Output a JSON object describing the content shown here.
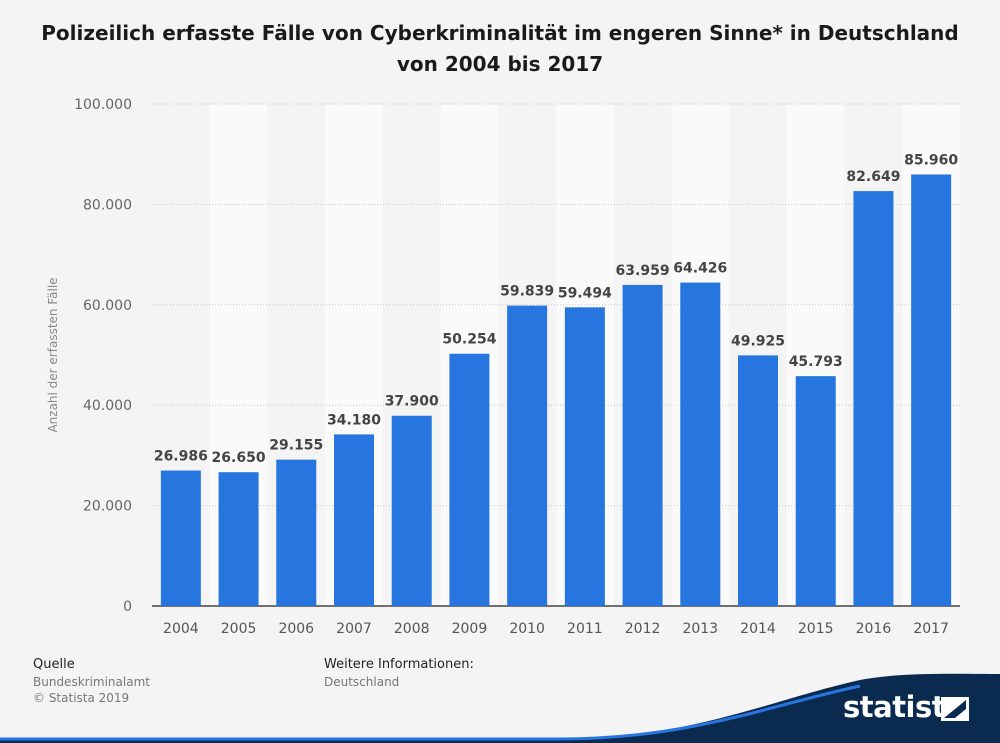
{
  "title_line1": "Polizeilich erfasste Fälle von Cyberkriminalität im engeren Sinne* in Deutschland",
  "title_line2": "von 2004 bis 2017",
  "chart_data": {
    "type": "bar",
    "categories": [
      "2004",
      "2005",
      "2006",
      "2007",
      "2008",
      "2009",
      "2010",
      "2011",
      "2012",
      "2013",
      "2014",
      "2015",
      "2016",
      "2017"
    ],
    "values": [
      26986,
      26650,
      29155,
      34180,
      37900,
      50254,
      59839,
      59494,
      63959,
      64426,
      49925,
      45793,
      82649,
      85960
    ],
    "value_labels": [
      "26.986",
      "26.650",
      "29.155",
      "34.180",
      "37.900",
      "50.254",
      "59.839",
      "59.494",
      "63.959",
      "64.426",
      "49.925",
      "45.793",
      "82.649",
      "85.960"
    ],
    "ylabel": "Anzahl der erfassten Fälle",
    "ylim": [
      0,
      100000
    ],
    "yticks": [
      0,
      20000,
      40000,
      60000,
      80000,
      100000
    ],
    "ytick_labels": [
      "0",
      "20.000",
      "40.000",
      "60.000",
      "80.000",
      "100.000"
    ],
    "bar_color": "#2776e0",
    "grid": true
  },
  "footer": {
    "source_heading": "Quelle",
    "source_name": "Bundeskriminalamt",
    "copyright": "© Statista 2019",
    "info_heading": "Weitere Informationen:",
    "info_text": "Deutschland"
  },
  "logo": {
    "text": "statista",
    "brand_color": "#0b2a4f"
  }
}
